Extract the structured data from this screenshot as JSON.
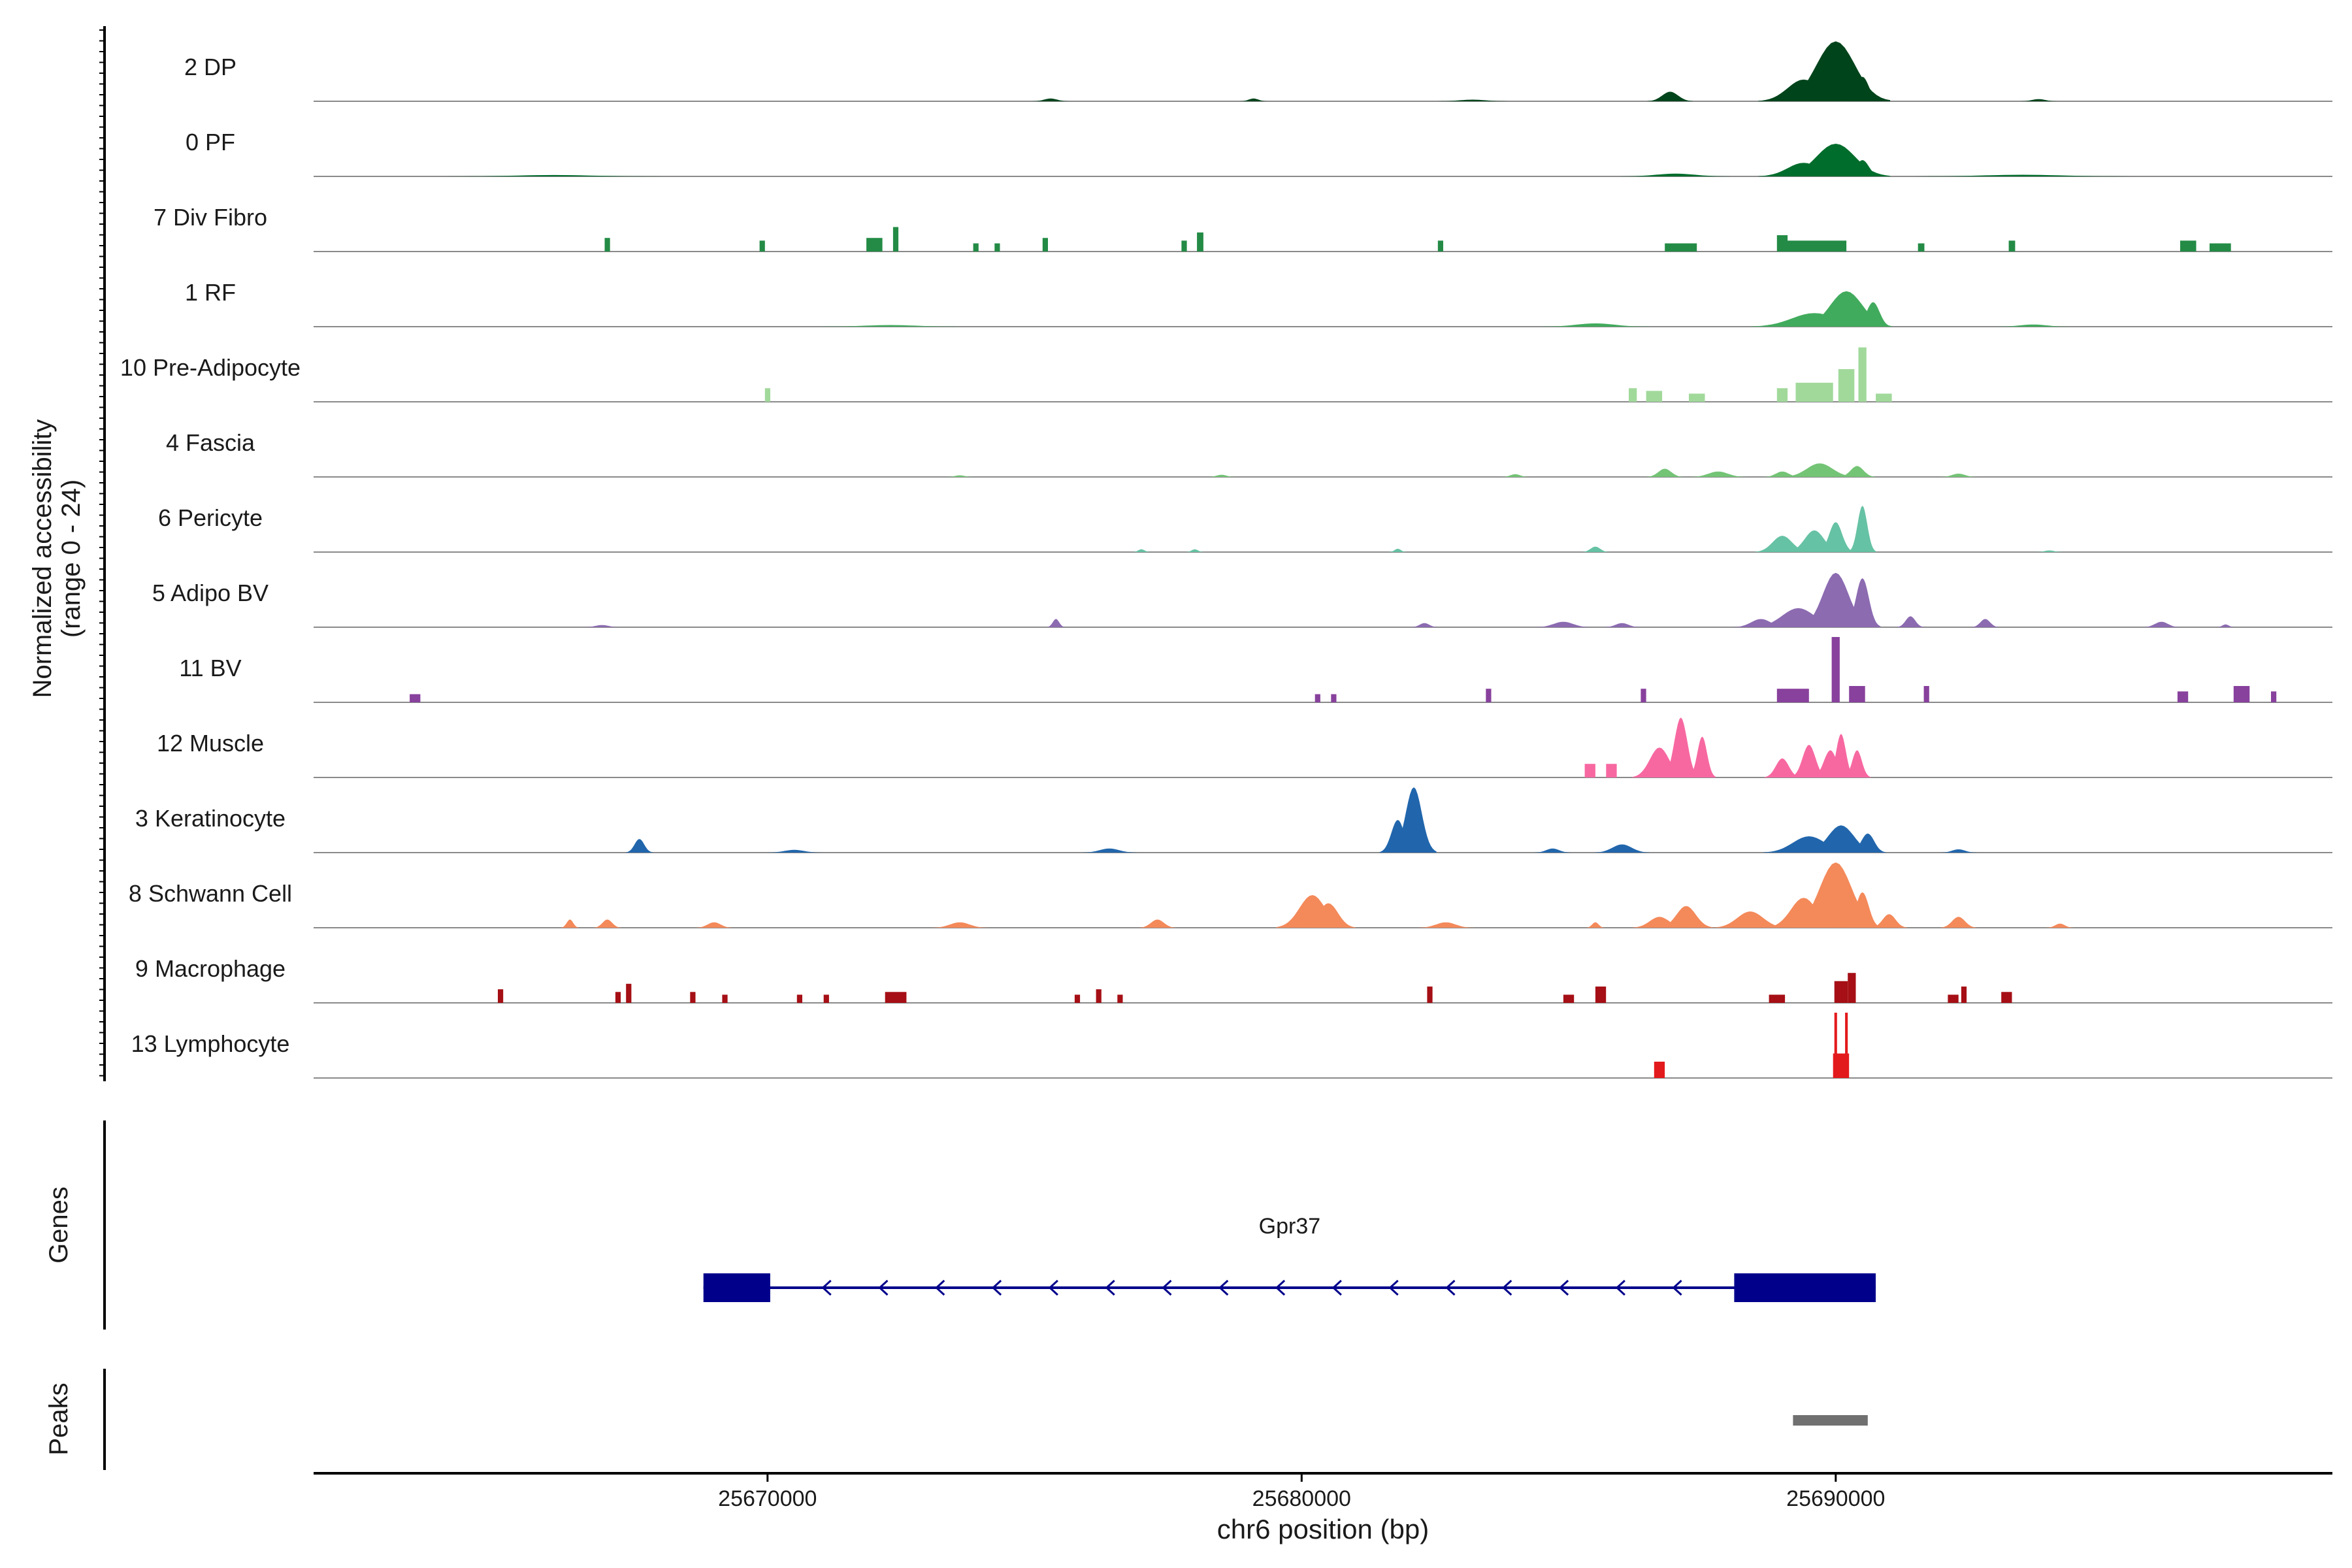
{
  "chart_data": {
    "type": "area",
    "title": "",
    "xlabel": "chr6 position (bp)",
    "ylabel_line1": "Normalized accessibility",
    "ylabel_line2": "(range 0 - 24)",
    "ylim": [
      0,
      24
    ],
    "xlim": [
      25661500,
      25699300
    ],
    "x_ticks": [
      25670000,
      25680000,
      25690000
    ],
    "x_tick_labels": [
      "25670000",
      "25680000",
      "25690000"
    ],
    "genes_label": "Genes",
    "peaks_label": "Peaks",
    "gene": {
      "name": "Gpr37",
      "strand": "-",
      "start": 25668800,
      "end": 25690750,
      "exons": [
        [
          25668800,
          25670050
        ],
        [
          25688100,
          25690750
        ]
      ],
      "color": "#00008b"
    },
    "peak": {
      "start": 25689200,
      "end": 25690600,
      "color": "#707070"
    },
    "tracks": [
      {
        "name": "2 DP",
        "color": "#00441b",
        "peaks": [
          [
            25686900,
            250,
            3.5,
            "bell"
          ],
          [
            25690000,
            600,
            22,
            "bell"
          ],
          [
            25689400,
            500,
            8,
            "bell"
          ],
          [
            25690500,
            200,
            9,
            "bell"
          ],
          [
            25675300,
            200,
            1,
            "bell"
          ],
          [
            25679100,
            150,
            1,
            "bell"
          ],
          [
            25683200,
            400,
            0.6,
            "bell"
          ],
          [
            25693800,
            200,
            0.8,
            "bell"
          ]
        ]
      },
      {
        "name": "0 PF",
        "color": "#006d2c",
        "peaks": [
          [
            25690000,
            600,
            12,
            "bell"
          ],
          [
            25689400,
            500,
            5,
            "bell"
          ],
          [
            25690500,
            200,
            6,
            "bell"
          ],
          [
            25687000,
            600,
            1,
            "bell"
          ],
          [
            25666000,
            1200,
            0.5,
            "bell"
          ],
          [
            25693500,
            1200,
            0.6,
            "bell"
          ]
        ]
      },
      {
        "name": "7 Div Fibro",
        "color": "#238b45",
        "peaks": [
          [
            25667000,
            100,
            5,
            "rect"
          ],
          [
            25669900,
            100,
            4,
            "rect"
          ],
          [
            25672000,
            300,
            5,
            "rect"
          ],
          [
            25672400,
            100,
            9,
            "rect"
          ],
          [
            25673900,
            100,
            3,
            "rect"
          ],
          [
            25674300,
            100,
            3,
            "rect"
          ],
          [
            25675200,
            100,
            5,
            "rect"
          ],
          [
            25677800,
            100,
            4,
            "rect"
          ],
          [
            25678100,
            120,
            7,
            "rect"
          ],
          [
            25682600,
            100,
            4,
            "rect"
          ],
          [
            25687100,
            600,
            3,
            "rect"
          ],
          [
            25689600,
            1200,
            4,
            "rect"
          ],
          [
            25689000,
            200,
            6,
            "rect"
          ],
          [
            25691600,
            120,
            3,
            "rect"
          ],
          [
            25693300,
            120,
            4,
            "rect"
          ],
          [
            25696600,
            300,
            4,
            "rect"
          ],
          [
            25697200,
            400,
            3,
            "rect"
          ]
        ]
      },
      {
        "name": "1 RF",
        "color": "#41ab5d",
        "peaks": [
          [
            25690200,
            500,
            13,
            "bell"
          ],
          [
            25689600,
            700,
            5,
            "bell"
          ],
          [
            25690700,
            200,
            9,
            "bell"
          ],
          [
            25685500,
            600,
            1.2,
            "bell"
          ],
          [
            25672300,
            800,
            0.6,
            "bell"
          ],
          [
            25693700,
            400,
            0.8,
            "bell"
          ]
        ]
      },
      {
        "name": "10 Pre-Adipocyte",
        "color": "#a1d99b",
        "peaks": [
          [
            25670000,
            100,
            5,
            "rect"
          ],
          [
            25686200,
            150,
            5,
            "rect"
          ],
          [
            25686600,
            300,
            4,
            "rect"
          ],
          [
            25687400,
            300,
            3,
            "rect"
          ],
          [
            25689000,
            200,
            5,
            "rect"
          ],
          [
            25689600,
            700,
            7,
            "rect"
          ],
          [
            25690200,
            300,
            12,
            "rect"
          ],
          [
            25690500,
            150,
            20,
            "rect"
          ],
          [
            25690900,
            300,
            3,
            "rect"
          ]
        ]
      },
      {
        "name": "4 Fascia",
        "color": "#74c476",
        "peaks": [
          [
            25686800,
            200,
            3,
            "bell"
          ],
          [
            25687800,
            300,
            2,
            "bell"
          ],
          [
            25689000,
            200,
            2,
            "bell"
          ],
          [
            25689700,
            400,
            5,
            "bell"
          ],
          [
            25690400,
            200,
            4,
            "bell"
          ],
          [
            25692300,
            200,
            1.2,
            "bell"
          ],
          [
            25684000,
            150,
            1,
            "bell"
          ],
          [
            25678500,
            150,
            0.8,
            "bell"
          ],
          [
            25673600,
            150,
            0.6,
            "bell"
          ]
        ]
      },
      {
        "name": "6 Pericyte",
        "color": "#66c2a4",
        "peaks": [
          [
            25689000,
            300,
            6,
            "bell"
          ],
          [
            25689600,
            300,
            8,
            "bell"
          ],
          [
            25690000,
            200,
            11,
            "bell"
          ],
          [
            25690500,
            150,
            17,
            "bell"
          ],
          [
            25685500,
            150,
            2,
            "bell"
          ],
          [
            25677000,
            100,
            1,
            "bell"
          ],
          [
            25678000,
            100,
            1,
            "bell"
          ],
          [
            25681800,
            100,
            1.2,
            "bell"
          ],
          [
            25694000,
            150,
            0.6,
            "bell"
          ]
        ]
      },
      {
        "name": "5 Adipo BV",
        "color": "#8c6bb1",
        "peaks": [
          [
            25690000,
            400,
            20,
            "bell"
          ],
          [
            25690500,
            200,
            18,
            "bell"
          ],
          [
            25689300,
            500,
            7,
            "bell"
          ],
          [
            25688600,
            300,
            3,
            "bell"
          ],
          [
            25691400,
            150,
            4,
            "bell"
          ],
          [
            25692800,
            150,
            3,
            "bell"
          ],
          [
            25675400,
            100,
            3,
            "bell"
          ],
          [
            25682300,
            150,
            1.5,
            "bell"
          ],
          [
            25684900,
            300,
            2,
            "bell"
          ],
          [
            25686000,
            200,
            1.5,
            "bell"
          ],
          [
            25696100,
            200,
            2,
            "bell"
          ],
          [
            25697300,
            100,
            1,
            "bell"
          ],
          [
            25666900,
            200,
            0.8,
            "bell"
          ]
        ]
      },
      {
        "name": "11 BV",
        "color": "#88419d",
        "peaks": [
          [
            25663400,
            200,
            3,
            "rect"
          ],
          [
            25680300,
            100,
            3,
            "rect"
          ],
          [
            25680600,
            100,
            3,
            "rect"
          ],
          [
            25683500,
            100,
            5,
            "rect"
          ],
          [
            25686400,
            100,
            5,
            "rect"
          ],
          [
            25689200,
            600,
            5,
            "rect"
          ],
          [
            25690000,
            150,
            24,
            "rect"
          ],
          [
            25690400,
            300,
            6,
            "rect"
          ],
          [
            25691700,
            100,
            6,
            "rect"
          ],
          [
            25696500,
            200,
            4,
            "rect"
          ],
          [
            25697600,
            300,
            6,
            "rect"
          ],
          [
            25698200,
            100,
            4,
            "rect"
          ]
        ]
      },
      {
        "name": "12 Muscle",
        "color": "#f768a1",
        "peaks": [
          [
            25685400,
            200,
            5,
            "rect"
          ],
          [
            25685800,
            200,
            5,
            "rect"
          ],
          [
            25686700,
            300,
            11,
            "bell"
          ],
          [
            25687100,
            200,
            22,
            "bell"
          ],
          [
            25687500,
            150,
            15,
            "bell"
          ],
          [
            25689000,
            200,
            7,
            "bell"
          ],
          [
            25689500,
            200,
            12,
            "bell"
          ],
          [
            25689900,
            200,
            10,
            "bell"
          ],
          [
            25690100,
            150,
            16,
            "bell"
          ],
          [
            25690400,
            150,
            10,
            "bell"
          ]
        ]
      },
      {
        "name": "3 Keratinocyte",
        "color": "#2166ac",
        "peaks": [
          [
            25682100,
            250,
            24,
            "bell"
          ],
          [
            25681800,
            200,
            12,
            "bell"
          ],
          [
            25667600,
            150,
            5,
            "bell"
          ],
          [
            25689500,
            500,
            6,
            "bell"
          ],
          [
            25690100,
            400,
            10,
            "bell"
          ],
          [
            25690600,
            200,
            7,
            "bell"
          ],
          [
            25686000,
            300,
            3,
            "bell"
          ],
          [
            25676400,
            300,
            1.5,
            "bell"
          ],
          [
            25684700,
            200,
            1.5,
            "bell"
          ],
          [
            25692300,
            200,
            1.2,
            "bell"
          ],
          [
            25670500,
            300,
            1,
            "bell"
          ]
        ]
      },
      {
        "name": "8 Schwann Cell",
        "color": "#f4895a",
        "peaks": [
          [
            25690000,
            500,
            24,
            "bell"
          ],
          [
            25689400,
            400,
            11,
            "bell"
          ],
          [
            25690500,
            200,
            13,
            "bell"
          ],
          [
            25688400,
            400,
            6,
            "bell"
          ],
          [
            25691000,
            200,
            5,
            "bell"
          ],
          [
            25680200,
            400,
            12,
            "bell"
          ],
          [
            25680500,
            300,
            9,
            "bell"
          ],
          [
            25687200,
            300,
            8,
            "bell"
          ],
          [
            25686700,
            300,
            4,
            "bell"
          ],
          [
            25692300,
            200,
            4,
            "bell"
          ],
          [
            25666300,
            100,
            3,
            "bell"
          ],
          [
            25667000,
            150,
            3,
            "bell"
          ],
          [
            25669000,
            200,
            2,
            "bell"
          ],
          [
            25673600,
            300,
            2,
            "bell"
          ],
          [
            25677300,
            200,
            3,
            "bell"
          ],
          [
            25682700,
            300,
            2,
            "bell"
          ],
          [
            25685500,
            100,
            2,
            "bell"
          ],
          [
            25694200,
            150,
            1.5,
            "bell"
          ]
        ]
      },
      {
        "name": "9 Macrophage",
        "color": "#a50f15",
        "peaks": [
          [
            25665000,
            100,
            5,
            "rect"
          ],
          [
            25667200,
            100,
            4,
            "rect"
          ],
          [
            25667400,
            100,
            7,
            "rect"
          ],
          [
            25668600,
            100,
            4,
            "rect"
          ],
          [
            25669200,
            100,
            3,
            "rect"
          ],
          [
            25670600,
            100,
            3,
            "rect"
          ],
          [
            25671100,
            100,
            3,
            "rect"
          ],
          [
            25672400,
            400,
            4,
            "rect"
          ],
          [
            25675800,
            100,
            3,
            "rect"
          ],
          [
            25676200,
            100,
            5,
            "rect"
          ],
          [
            25676600,
            100,
            3,
            "rect"
          ],
          [
            25682400,
            100,
            6,
            "rect"
          ],
          [
            25685000,
            200,
            3,
            "rect"
          ],
          [
            25685600,
            200,
            6,
            "rect"
          ],
          [
            25688900,
            300,
            3,
            "rect"
          ],
          [
            25690100,
            250,
            8,
            "rect"
          ],
          [
            25690300,
            150,
            11,
            "rect"
          ],
          [
            25692200,
            200,
            3,
            "rect"
          ],
          [
            25692400,
            100,
            6,
            "rect"
          ],
          [
            25693200,
            200,
            4,
            "rect"
          ]
        ]
      },
      {
        "name": "13 Lymphocyte",
        "color": "#e31a1c",
        "peaks": [
          [
            25686700,
            200,
            6,
            "rect"
          ],
          [
            25690100,
            300,
            9,
            "rect"
          ],
          [
            25690000,
            50,
            24,
            "rect"
          ],
          [
            25690200,
            50,
            24,
            "rect"
          ]
        ]
      }
    ]
  }
}
